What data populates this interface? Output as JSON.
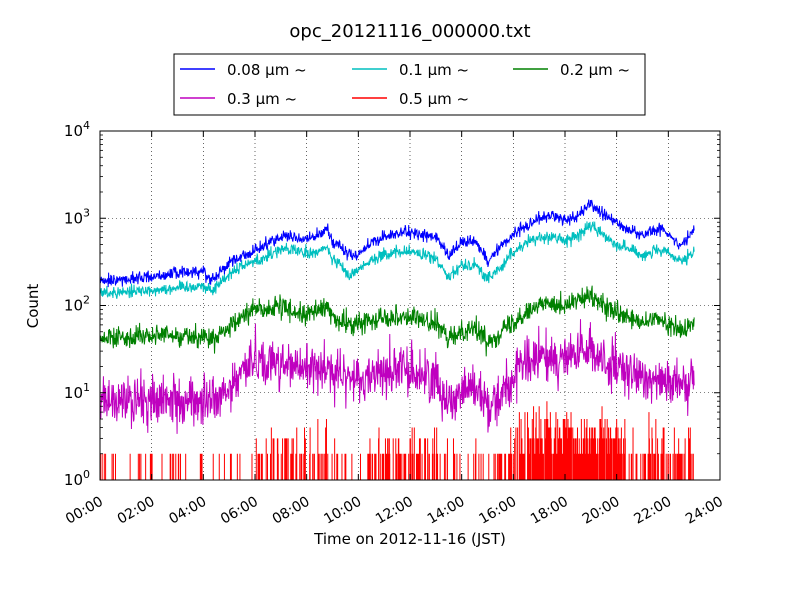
{
  "chart_data": {
    "type": "line",
    "title": "opc_20121116_000000.txt",
    "xlabel": "Time on 2012-11-16 (JST)",
    "ylabel": "Count",
    "x_range_hours": [
      0,
      24
    ],
    "x_ticks": [
      "00:00",
      "02:00",
      "04:00",
      "06:00",
      "08:00",
      "10:00",
      "12:00",
      "14:00",
      "16:00",
      "18:00",
      "20:00",
      "22:00",
      "24:00"
    ],
    "y_scale": "log",
    "ylim": [
      1,
      10000
    ],
    "y_ticks": [
      {
        "base": "10",
        "exp": "0"
      },
      {
        "base": "10",
        "exp": "1"
      },
      {
        "base": "10",
        "exp": "2"
      },
      {
        "base": "10",
        "exp": "3"
      },
      {
        "base": "10",
        "exp": "4"
      }
    ],
    "grid": true,
    "legend_position": "top (above axes), 3 columns",
    "series": [
      {
        "name": "0.08 μm ~",
        "color": "#0000ff",
        "noise": 0.035,
        "x": [
          0,
          1,
          2,
          3,
          4,
          4.3,
          5,
          5.5,
          6,
          6.5,
          7,
          7.5,
          8,
          8.5,
          8.8,
          9,
          9.3,
          9.6,
          10,
          10.5,
          11,
          11.5,
          12,
          12.5,
          13,
          13.5,
          14,
          14.5,
          15,
          15.5,
          16,
          16.5,
          17,
          17.5,
          18,
          18.5,
          19,
          19.5,
          20,
          21,
          21.5,
          22,
          22.5,
          23
        ],
        "y": [
          190,
          200,
          215,
          235,
          250,
          195,
          310,
          370,
          420,
          520,
          620,
          610,
          560,
          660,
          760,
          550,
          470,
          390,
          380,
          520,
          610,
          660,
          690,
          650,
          610,
          360,
          530,
          560,
          330,
          470,
          660,
          820,
          1020,
          1060,
          940,
          1070,
          1500,
          1080,
          880,
          630,
          760,
          680,
          480,
          740
        ]
      },
      {
        "name": "0.1 μm ~",
        "color": "#00bfbf",
        "noise": 0.035,
        "x": [
          0,
          1,
          2,
          3,
          4,
          4.3,
          5,
          5.5,
          6,
          6.5,
          7,
          7.5,
          8,
          8.5,
          8.8,
          9,
          9.3,
          9.6,
          10,
          10.5,
          11,
          11.5,
          12,
          12.5,
          13,
          13.5,
          14,
          14.5,
          15,
          15.5,
          16,
          16.5,
          17,
          17.5,
          18,
          18.5,
          19,
          19.5,
          20,
          21,
          21.5,
          22,
          22.5,
          23
        ],
        "y": [
          140,
          145,
          150,
          160,
          170,
          145,
          230,
          290,
          320,
          370,
          450,
          430,
          390,
          420,
          460,
          340,
          290,
          220,
          260,
          340,
          380,
          400,
          420,
          380,
          340,
          220,
          290,
          300,
          200,
          270,
          410,
          520,
          600,
          620,
          550,
          640,
          820,
          640,
          510,
          380,
          420,
          400,
          310,
          400
        ]
      },
      {
        "name": "0.2 μm ~",
        "color": "#008000",
        "noise": 0.06,
        "x": [
          0,
          1,
          2,
          3,
          4,
          4.3,
          5,
          5.5,
          6,
          6.5,
          7,
          7.5,
          8,
          8.5,
          8.8,
          9,
          9.3,
          9.6,
          10,
          10.5,
          11,
          11.5,
          12,
          12.5,
          13,
          13.5,
          14,
          14.5,
          15,
          15.5,
          16,
          16.5,
          17,
          17.5,
          18,
          18.5,
          19,
          19.5,
          20,
          21,
          21.5,
          22,
          22.5,
          23
        ],
        "y": [
          40,
          45,
          45,
          45,
          45,
          40,
          52,
          75,
          95,
          90,
          95,
          85,
          78,
          88,
          100,
          72,
          65,
          62,
          60,
          70,
          75,
          75,
          75,
          68,
          62,
          40,
          52,
          56,
          38,
          50,
          64,
          88,
          100,
          110,
          100,
          115,
          125,
          100,
          80,
          62,
          70,
          62,
          50,
          62
        ]
      },
      {
        "name": "0.3 μm ~",
        "color": "#bf00bf",
        "noise": 0.14,
        "x": [
          0,
          1,
          2,
          3,
          4,
          4.3,
          5,
          5.5,
          6,
          6.5,
          7,
          7.5,
          8,
          8.5,
          8.8,
          9,
          9.3,
          9.6,
          10,
          10.5,
          11,
          11.5,
          12,
          12.5,
          13,
          13.5,
          14,
          14.5,
          15,
          15.5,
          16,
          16.5,
          17,
          17.5,
          18,
          18.5,
          19,
          19.5,
          20,
          21,
          21.5,
          22,
          22.5,
          23
        ],
        "y": [
          8,
          8,
          8,
          8,
          8,
          8,
          10,
          18,
          25,
          22,
          22,
          20,
          18,
          20,
          22,
          16,
          15,
          15,
          14,
          16,
          18,
          18,
          18,
          16,
          14,
          8,
          11,
          12,
          7,
          10,
          14,
          22,
          25,
          26,
          24,
          28,
          30,
          24,
          18,
          14,
          16,
          14,
          11,
          14
        ]
      },
      {
        "name": "0.5 μm ~",
        "color": "#ff0000",
        "noise": 0,
        "x": [
          0,
          1,
          2,
          3,
          4,
          4.3,
          5,
          5.5,
          6,
          6.5,
          7,
          7.5,
          8,
          8.5,
          8.8,
          9,
          9.3,
          9.6,
          10,
          10.5,
          11,
          11.5,
          12,
          12.5,
          13,
          13.5,
          14,
          14.5,
          15,
          15.5,
          16,
          16.5,
          17,
          17.5,
          18,
          18.5,
          19,
          19.5,
          20,
          21,
          21.5,
          22,
          22.5,
          23
        ],
        "y": [
          1,
          1,
          1,
          1,
          1,
          1,
          1,
          1,
          1.5,
          2,
          2,
          2,
          2,
          2,
          2,
          1.5,
          1.5,
          1,
          1.5,
          2,
          2,
          2,
          2,
          2,
          2,
          1.5,
          1.5,
          2,
          1.5,
          2,
          2,
          3,
          3,
          3,
          3,
          3,
          3,
          3,
          2.5,
          2,
          2,
          2,
          2,
          2
        ]
      }
    ]
  }
}
